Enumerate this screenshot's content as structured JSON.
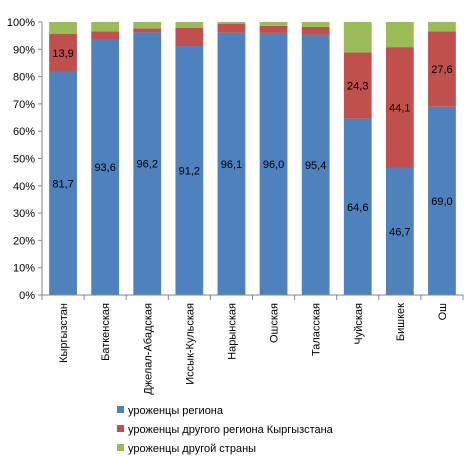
{
  "chart_data": {
    "type": "bar",
    "stacked": true,
    "percent_stacked": true,
    "categories": [
      "Кыргызстан",
      "Баткенская",
      "Джелал-Абадская",
      "Иссык-Кульская",
      "Нарынская",
      "Ошская",
      "Таласская",
      "Чуйская",
      "Бишкек",
      "Ош"
    ],
    "series": [
      {
        "name": "уроженцы региона",
        "color": "#4F81BD",
        "values": [
          81.7,
          93.6,
          96.2,
          91.2,
          96.1,
          96.0,
          95.4,
          64.6,
          46.7,
          69.0
        ],
        "labels": [
          "81,7",
          "93,6",
          "96,2",
          "91,2",
          "96,1",
          "96,0",
          "95,4",
          "64,6",
          "46,7",
          "69,0"
        ]
      },
      {
        "name": "уроженцы другого региона Кыргызстана",
        "color": "#C0504D",
        "values": [
          13.9,
          3.0,
          1.5,
          6.6,
          3.3,
          2.6,
          2.8,
          24.3,
          44.1,
          27.6
        ],
        "labels": [
          "13,9",
          "",
          "",
          "",
          "",
          "",
          "",
          "24,3",
          "44,1",
          "27,6"
        ]
      },
      {
        "name": "уроженцы другой страны",
        "color": "#9BBB59",
        "values": [
          4.4,
          3.4,
          2.3,
          2.2,
          0.6,
          1.4,
          1.8,
          11.1,
          9.2,
          3.4
        ],
        "labels": [
          "",
          "",
          "",
          "",
          "",
          "",
          "",
          "",
          "",
          ""
        ]
      }
    ],
    "y_ticks": [
      "0%",
      "10%",
      "20%",
      "30%",
      "40%",
      "50%",
      "60%",
      "70%",
      "80%",
      "90%",
      "100%"
    ],
    "ylim": [
      0,
      100
    ],
    "title": "",
    "xlabel": "",
    "ylabel": "",
    "grid": false,
    "legend": "bottom"
  }
}
